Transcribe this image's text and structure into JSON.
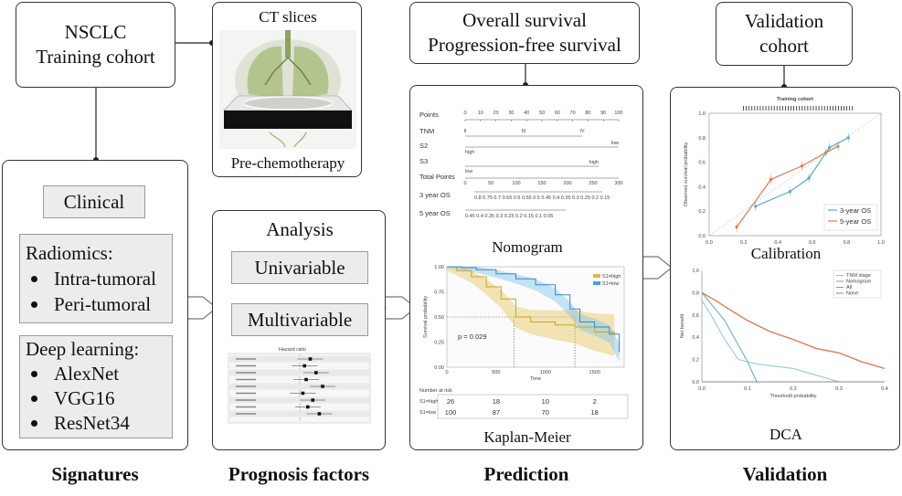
{
  "training": {
    "line1": "NSCLC",
    "line2": "Training cohort"
  },
  "ct": {
    "title": "CT slices",
    "caption": "Pre-chemotherapy"
  },
  "survival": {
    "line1": "Overall survival",
    "line2": "Progression-free survival"
  },
  "validation_box": {
    "line1": "Validation",
    "line2": "cohort"
  },
  "signatures": {
    "clinical": "Clinical",
    "radiomics_title": "Radiomics:",
    "radiomics_items": [
      "Intra-tumoral",
      "Peri-tumoral"
    ],
    "dl_title": "Deep learning:",
    "dl_items": [
      "AlexNet",
      "VGG16",
      "ResNet34"
    ]
  },
  "analysis": {
    "title": "Analysis",
    "uni": "Univariable",
    "multi": "Multivariable",
    "forest_title": "Hazard ratio"
  },
  "nomogram": {
    "label": "Nomogram",
    "rows": [
      "Points",
      "TNM",
      "S2",
      "S3",
      "Total Points",
      "3 year OS",
      "5 year OS"
    ],
    "points_ticks": [
      "0",
      "10",
      "20",
      "30",
      "40",
      "50",
      "60",
      "70",
      "80",
      "90",
      "100"
    ],
    "tnm_levels": [
      "II",
      "III",
      "IV"
    ],
    "s2_levels": [
      "high",
      "low"
    ],
    "s3_levels": [
      "low",
      "high"
    ],
    "total_ticks": [
      "0",
      "50",
      "100",
      "150",
      "200",
      "250",
      "300"
    ],
    "os3_ticks": "0.8   0.75  0.7  0.65 0.6 0.55 0.5 0.45 0.4 0.35 0.3 0.25 0.2 0.15",
    "os5_ticks": "0.45 0.4 0.35 0.3 0.25 0.2 0.15  0.1    0.05"
  },
  "km": {
    "label": "Kaplan-Meier",
    "pvalue": "p = 0.029",
    "xlabel": "Time",
    "ylabel": "Survival probability",
    "legend": [
      "S1=high",
      "S1=low"
    ],
    "yticks": [
      "1.00",
      "0.75",
      "0.50",
      "0.25",
      "0.00"
    ],
    "xticks": [
      "0",
      "500",
      "1000",
      "1500"
    ],
    "risk_title": "Number at risk",
    "risk_high": [
      "26",
      "18",
      "10",
      "2"
    ],
    "risk_low": [
      "100",
      "87",
      "70",
      "18"
    ],
    "risk_labels": [
      "S1=high",
      "S1=low"
    ]
  },
  "calibration": {
    "label": "Calibration",
    "title": "Training cohort",
    "ylabel": "Observed survival probability",
    "xticks": [
      "0.0",
      "0.2",
      "0.4",
      "0.6",
      "0.8",
      "1.0"
    ],
    "yticks": [
      "0.0",
      "0.2",
      "0.4",
      "0.6",
      "0.8",
      "1.0"
    ],
    "legend": [
      "3-year OS",
      "5-year OS"
    ],
    "colors": [
      "#5aa9c9",
      "#e07a4f"
    ]
  },
  "dca": {
    "label": "DCA",
    "ylabel": "Net benefit",
    "xlabel": "Threshold probability",
    "legend": [
      "TNM stage",
      "Nomogram",
      "All",
      "None"
    ],
    "xticks": [
      "0.0",
      "0.1",
      "0.2",
      "0.3",
      "0.4"
    ],
    "yticks": [
      "0.0",
      "0.2",
      "0.4",
      "0.6",
      "0.8",
      "1.0"
    ]
  },
  "captions": {
    "c1": "Signatures",
    "c2": "Prognosis factors",
    "c3": "Prediction",
    "c4": "Validation"
  },
  "chart_data": [
    {
      "type": "line",
      "title": "Training cohort",
      "xlabel": "",
      "ylabel": "Observed survival probability",
      "xlim": [
        0,
        1
      ],
      "ylim": [
        0,
        1
      ],
      "series": [
        {
          "name": "3-year OS",
          "x": [
            0.27,
            0.47,
            0.58,
            0.7,
            0.81
          ],
          "y": [
            0.24,
            0.36,
            0.47,
            0.72,
            0.8
          ]
        },
        {
          "name": "5-year OS",
          "x": [
            0.16,
            0.36,
            0.54,
            0.68,
            0.75
          ],
          "y": [
            0.07,
            0.46,
            0.57,
            0.68,
            0.73
          ]
        }
      ]
    },
    {
      "type": "line",
      "title": "",
      "xlabel": "Threshold probability",
      "ylabel": "Net benefit",
      "xlim": [
        0,
        0.4
      ],
      "ylim": [
        0,
        1
      ],
      "series": [
        {
          "name": "TNM stage",
          "x": [
            0,
            0.02,
            0.05,
            0.08,
            0.12,
            0.2,
            0.3
          ],
          "y": [
            0.73,
            0.6,
            0.38,
            0.2,
            0.16,
            0.12,
            0.0
          ]
        },
        {
          "name": "Nomogram",
          "x": [
            0,
            0.03,
            0.06,
            0.1,
            0.15,
            0.2,
            0.25,
            0.3,
            0.35,
            0.4
          ],
          "y": [
            0.8,
            0.73,
            0.65,
            0.55,
            0.45,
            0.38,
            0.3,
            0.26,
            0.18,
            0.12
          ]
        },
        {
          "name": "All",
          "x": [
            0,
            0.05,
            0.1,
            0.12
          ],
          "y": [
            0.8,
            0.55,
            0.18,
            0.0
          ]
        },
        {
          "name": "None",
          "x": [
            0,
            0.4
          ],
          "y": [
            0,
            0
          ]
        }
      ]
    }
  ]
}
